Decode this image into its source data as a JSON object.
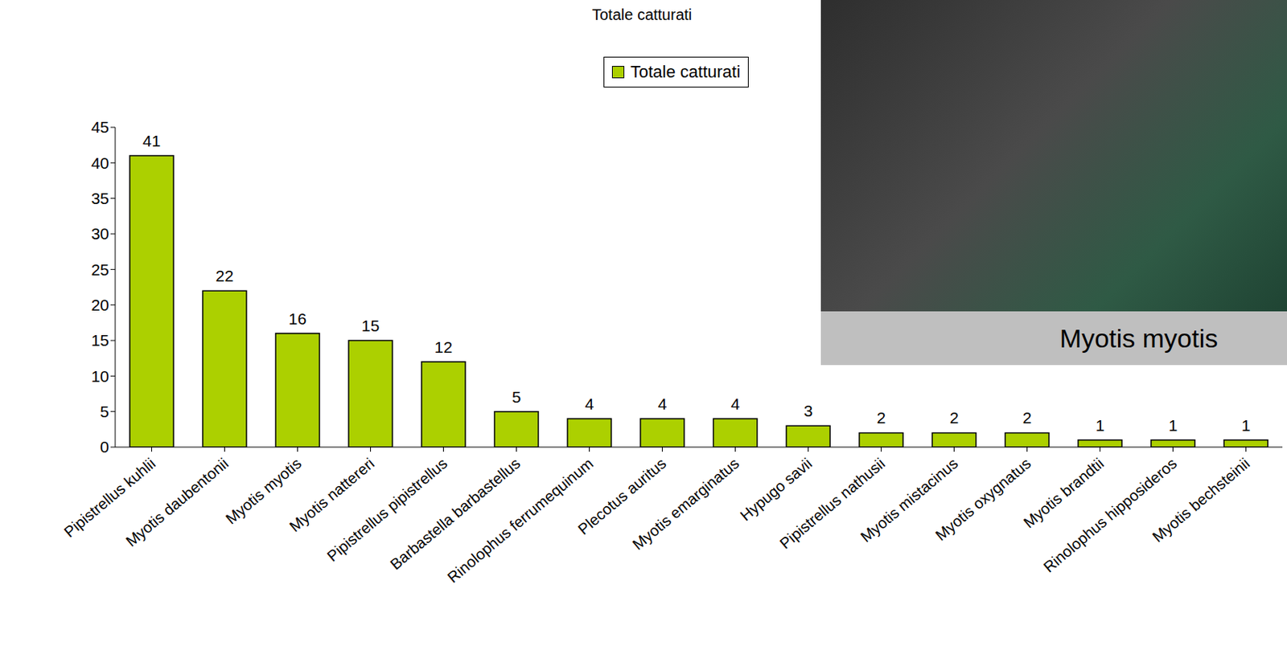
{
  "chart_data": {
    "type": "bar",
    "title": "Totale catturati",
    "categories": [
      "Pipistrellus kuhlii",
      "Myotis daubentonii",
      "Myotis myotis",
      "Myotis nattereri",
      "Pipistrellus pipistrellus",
      "Barbastella barbastellus",
      "Rinolophus ferrumequinum",
      "Plecotus auritus",
      "Myotis emarginatus",
      "Hypugo savii",
      "Pipistrellus nathusii",
      "Myotis mistacinus",
      "Myotis oxygnatus",
      "Myotis brandtii",
      "Rinolophus hipposideros",
      "Myotis bechsteinii"
    ],
    "series": [
      {
        "name": "Totale catturati",
        "color": "#acd000",
        "values": [
          41,
          22,
          16,
          15,
          12,
          5,
          4,
          4,
          4,
          3,
          2,
          2,
          2,
          1,
          1,
          1
        ]
      }
    ],
    "ylim": [
      0,
      45
    ],
    "yticks": [
      0,
      5,
      10,
      15,
      20,
      25,
      30,
      35,
      40,
      45
    ],
    "grid": false,
    "legend": "top",
    "data_labels": true,
    "annotations": [
      "Myotis myotis"
    ]
  }
}
